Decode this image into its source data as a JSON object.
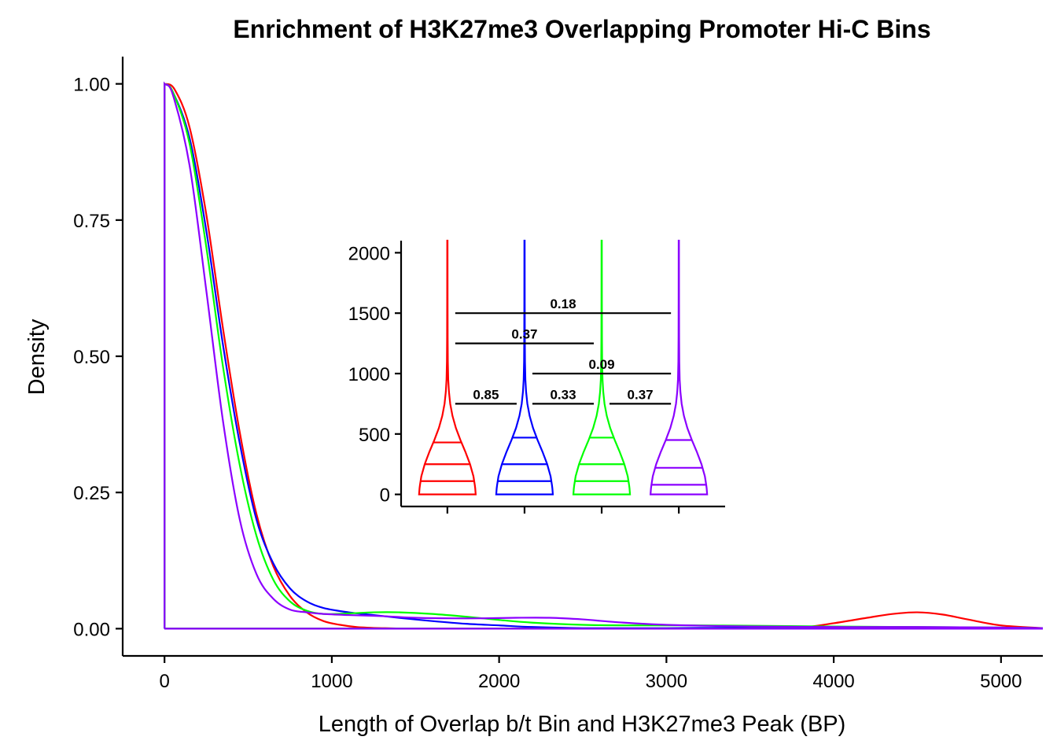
{
  "colors": {
    "red": "#ff0000",
    "blue": "#0000ff",
    "green": "#00ff00",
    "purple": "#8b00ff"
  },
  "chart_data": [
    {
      "type": "line",
      "title": "Enrichment of H3K27me3 Overlapping Promoter Hi-C Bins",
      "xlabel": "Length of Overlap b/t Bin and H3K27me3 Peak (BP)",
      "ylabel": "Density",
      "xlim": [
        -250,
        5250
      ],
      "ylim": [
        -0.05,
        1.05
      ],
      "xticks": [
        0,
        1000,
        2000,
        3000,
        4000,
        5000
      ],
      "xtick_labels": [
        "0",
        "1000",
        "2000",
        "3000",
        "4000",
        "5000"
      ],
      "yticks": [
        0,
        0.25,
        0.5,
        0.75,
        1.0
      ],
      "ytick_labels": [
        "0.00",
        "0.25",
        "0.50",
        "0.75",
        "1.00"
      ],
      "grid": false,
      "legend": "none",
      "series": [
        {
          "color": "red",
          "x": [
            0,
            0,
            60,
            150,
            250,
            350,
            450,
            550,
            650,
            750,
            850,
            950,
            1050,
            1150,
            1300,
            1500,
            2000,
            2500,
            3000,
            3500,
            3800,
            4000,
            4200,
            4350,
            4500,
            4650,
            4800,
            5000,
            5250
          ],
          "values": [
            0,
            1.0,
            0.99,
            0.92,
            0.76,
            0.55,
            0.36,
            0.21,
            0.115,
            0.06,
            0.03,
            0.014,
            0.007,
            0.003,
            0.001,
            0.0,
            0.0,
            0.0,
            0.0,
            0.0,
            0.002,
            0.01,
            0.02,
            0.027,
            0.03,
            0.026,
            0.017,
            0.006,
            0.001
          ]
        },
        {
          "color": "blue",
          "x": [
            0,
            0,
            50,
            150,
            250,
            350,
            450,
            550,
            650,
            750,
            850,
            950,
            1100,
            1250,
            1400,
            1600,
            1800,
            2000,
            2200,
            2500,
            3000,
            3500,
            4000,
            4500,
            5000,
            5250
          ],
          "values": [
            0,
            1.0,
            0.985,
            0.9,
            0.73,
            0.52,
            0.34,
            0.2,
            0.12,
            0.074,
            0.05,
            0.038,
            0.03,
            0.025,
            0.02,
            0.014,
            0.009,
            0.006,
            0.003,
            0.001,
            0.001,
            0.002,
            0.002,
            0.002,
            0.002,
            0.001
          ]
        },
        {
          "color": "green",
          "x": [
            0,
            0,
            50,
            150,
            250,
            350,
            450,
            550,
            650,
            750,
            850,
            950,
            1100,
            1250,
            1400,
            1600,
            1800,
            2000,
            2200,
            2500,
            2800,
            3200,
            3600,
            4000,
            4500,
            5000,
            5250
          ],
          "values": [
            0,
            1.0,
            0.985,
            0.89,
            0.7,
            0.48,
            0.3,
            0.17,
            0.09,
            0.05,
            0.033,
            0.027,
            0.028,
            0.03,
            0.03,
            0.027,
            0.022,
            0.016,
            0.011,
            0.007,
            0.006,
            0.006,
            0.005,
            0.004,
            0.003,
            0.002,
            0.001
          ]
        },
        {
          "color": "purple",
          "x": [
            0,
            0,
            50,
            150,
            250,
            350,
            450,
            550,
            650,
            750,
            850,
            950,
            1100,
            1300,
            1500,
            1700,
            1900,
            2100,
            2300,
            2500,
            2700,
            3000,
            3500,
            4000,
            4500,
            5000,
            5250
          ],
          "values": [
            0,
            1.0,
            0.98,
            0.85,
            0.62,
            0.38,
            0.2,
            0.1,
            0.055,
            0.035,
            0.03,
            0.027,
            0.025,
            0.023,
            0.02,
            0.019,
            0.019,
            0.02,
            0.02,
            0.017,
            0.012,
            0.007,
            0.004,
            0.003,
            0.003,
            0.002,
            0.001
          ]
        }
      ]
    },
    {
      "type": "violin",
      "ylim": [
        -100,
        2100
      ],
      "yticks": [
        0,
        500,
        1000,
        1500,
        2000
      ],
      "ytick_labels": [
        "0",
        "500",
        "1000",
        "1500",
        "2000"
      ],
      "grid": false,
      "legend": "none",
      "groups": [
        {
          "color": "red",
          "quantiles": [
            110,
            250,
            430
          ]
        },
        {
          "color": "blue",
          "quantiles": [
            110,
            250,
            470
          ]
        },
        {
          "color": "green",
          "quantiles": [
            110,
            250,
            470
          ]
        },
        {
          "color": "purple",
          "quantiles": [
            80,
            220,
            450
          ]
        }
      ],
      "comparisons": [
        {
          "from": 1,
          "to": 4,
          "y": 1500,
          "label": "0.18"
        },
        {
          "from": 1,
          "to": 3,
          "y": 1250,
          "label": "0.37"
        },
        {
          "from": 2,
          "to": 4,
          "y": 1000,
          "label": "0.09"
        },
        {
          "from": 1,
          "to": 2,
          "y": 750,
          "label": "0.85"
        },
        {
          "from": 2,
          "to": 3,
          "y": 750,
          "label": "0.33"
        },
        {
          "from": 3,
          "to": 4,
          "y": 750,
          "label": "0.37"
        }
      ]
    }
  ]
}
